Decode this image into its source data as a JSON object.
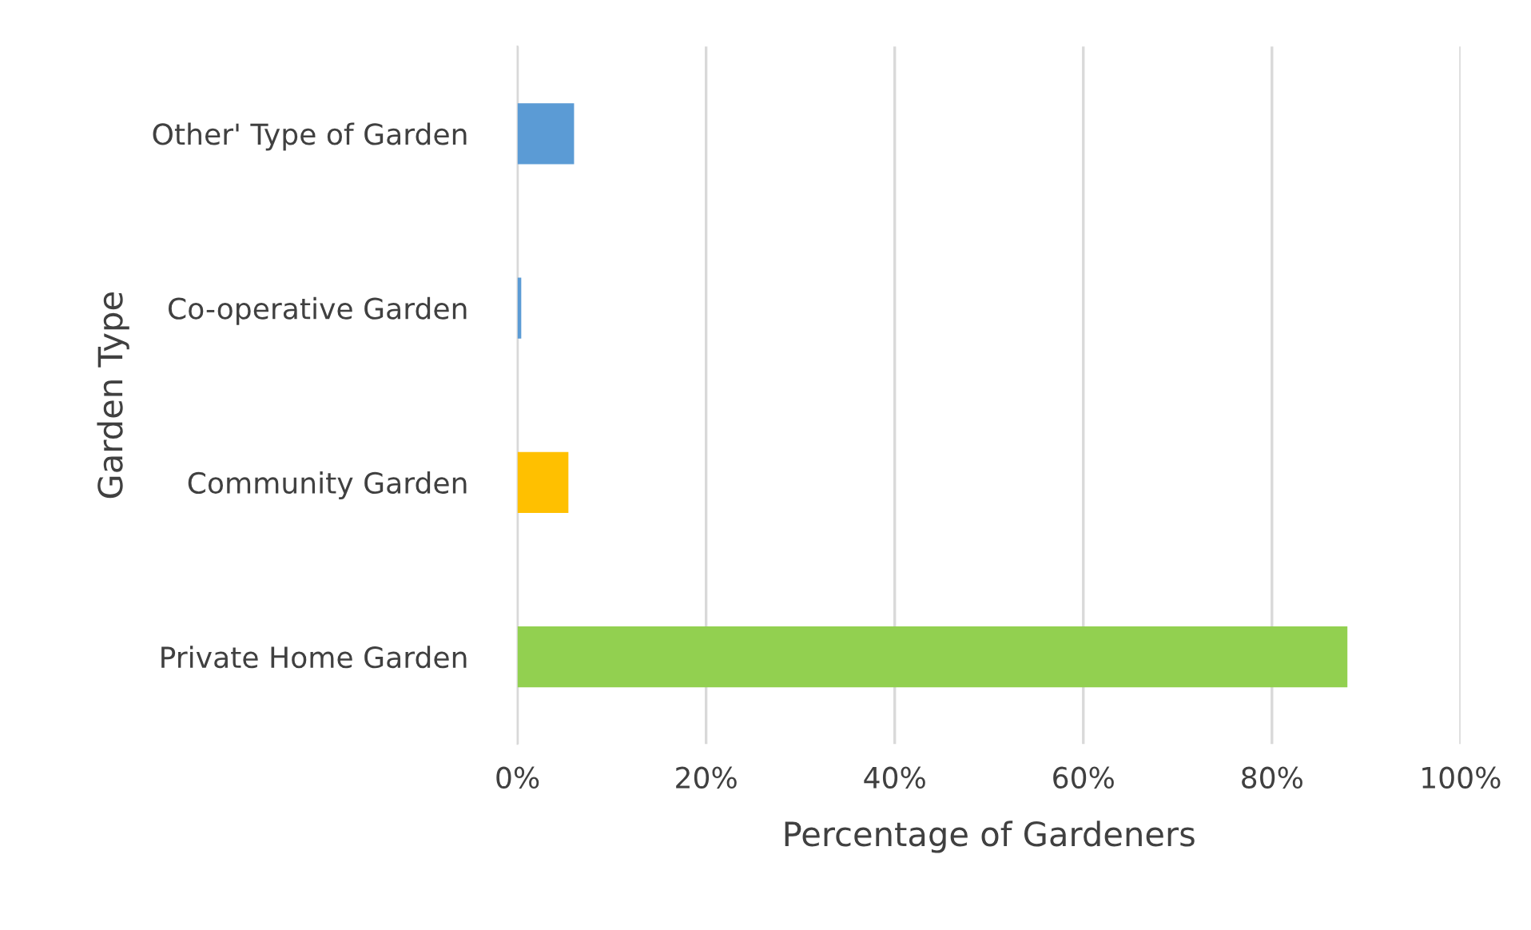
{
  "chart_data": {
    "type": "bar",
    "orientation": "horizontal",
    "xlabel": "Percentage of Gardeners",
    "ylabel": "Garden Type",
    "categories": [
      "Other' Type of Garden",
      "Co-operative Garden",
      "Community Garden",
      "Private Home Garden"
    ],
    "values": [
      6,
      0.4,
      5.4,
      88
    ],
    "colors": [
      "#5b9bd5",
      "#5b9bd5",
      "#ffc000",
      "#92d050"
    ],
    "xlim": [
      0,
      100
    ],
    "xticks": [
      {
        "value": 0,
        "label": "0%"
      },
      {
        "value": 20,
        "label": "20%"
      },
      {
        "value": 40,
        "label": "40%"
      },
      {
        "value": 60,
        "label": "60%"
      },
      {
        "value": 80,
        "label": "80%"
      },
      {
        "value": 100,
        "label": "100%"
      }
    ],
    "grid": "x",
    "legend": false
  }
}
